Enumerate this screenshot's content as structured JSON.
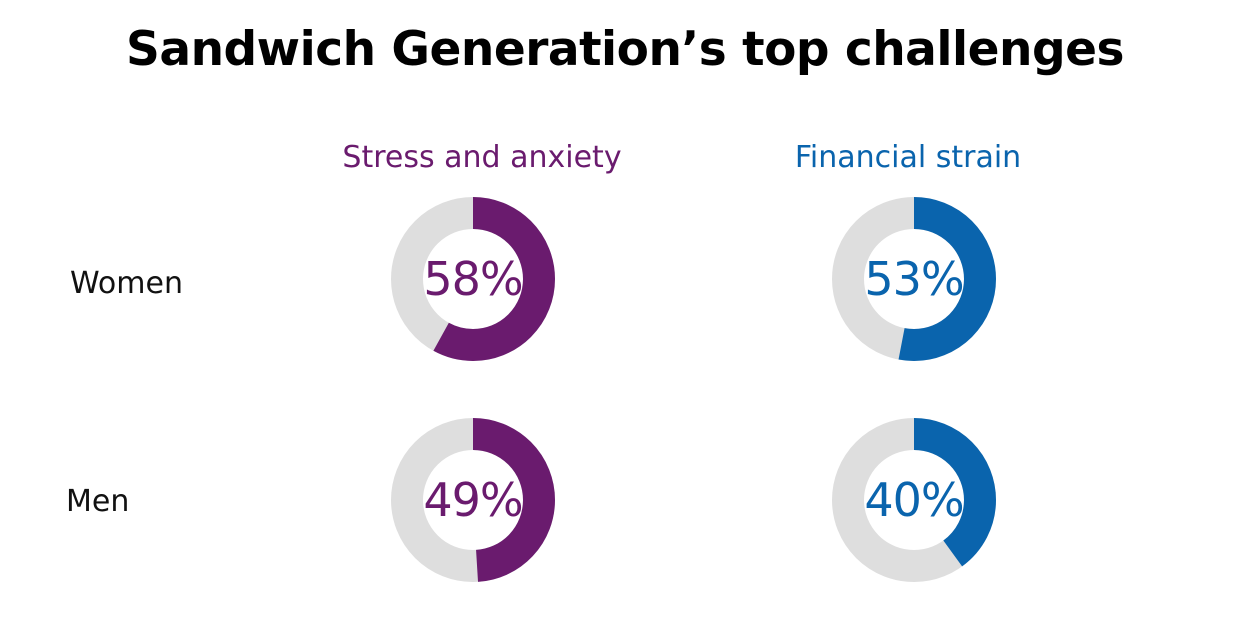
{
  "title": "Sandwich Generation’s top challenges",
  "columns": [
    {
      "label": "Stress and anxiety",
      "color": "#6a1b6e"
    },
    {
      "label": "Financial strain",
      "color": "#0a64ad"
    }
  ],
  "rows": [
    {
      "label": "Women"
    },
    {
      "label": "Men"
    }
  ],
  "track_color": "#dedede",
  "donuts": [
    {
      "row": "Women",
      "column": "Stress and anxiety",
      "value": 58,
      "label": "58%"
    },
    {
      "row": "Women",
      "column": "Financial strain",
      "value": 53,
      "label": "53%"
    },
    {
      "row": "Men",
      "column": "Stress and anxiety",
      "value": 49,
      "label": "49%"
    },
    {
      "row": "Men",
      "column": "Financial strain",
      "value": 40,
      "label": "40%"
    }
  ],
  "chart_data": {
    "type": "pie",
    "title": "Sandwich Generation’s top challenges",
    "categories": [
      "Women",
      "Men"
    ],
    "series": [
      {
        "name": "Stress and anxiety",
        "values": [
          58,
          49
        ]
      },
      {
        "name": "Financial strain",
        "values": [
          53,
          40
        ]
      }
    ],
    "unit": "%",
    "xlabel": "",
    "ylabel": ""
  }
}
